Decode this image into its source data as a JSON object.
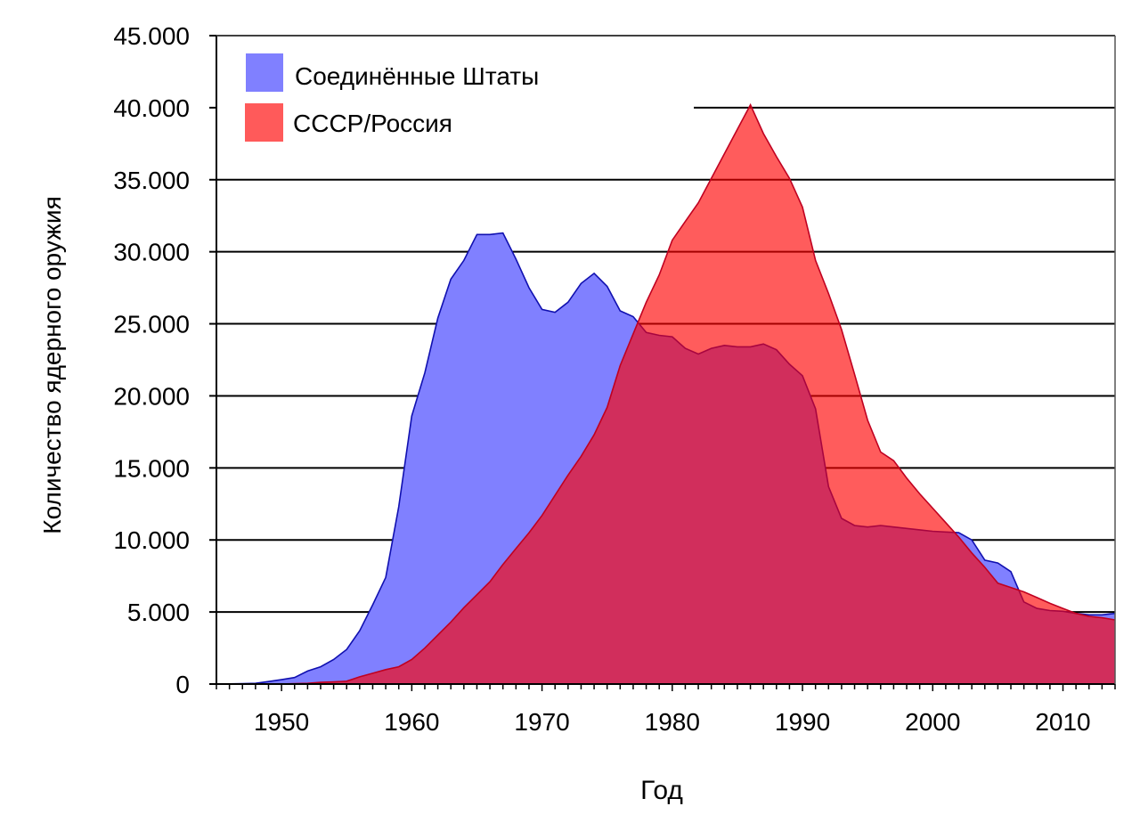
{
  "chart_data": {
    "type": "area",
    "title": "",
    "xlabel": "Год",
    "ylabel": "Количество ядерного оружия",
    "xlim": [
      1945,
      2014
    ],
    "ylim": [
      0,
      45000
    ],
    "grid": true,
    "legend_position": "top-left",
    "x_ticks": [
      "1950",
      "1960",
      "1970",
      "1980",
      "1990",
      "2000",
      "2010"
    ],
    "y_ticks": [
      "0",
      "5.000",
      "10.000",
      "15.000",
      "20.000",
      "25.000",
      "30.000",
      "35.000",
      "40.000",
      "45.000"
    ],
    "series": [
      {
        "name": "Соединённые Штаты",
        "color": "#8080ff",
        "line_color": "#1010b0",
        "x": [
          1945,
          1946,
          1947,
          1948,
          1949,
          1950,
          1951,
          1952,
          1953,
          1954,
          1955,
          1956,
          1957,
          1958,
          1959,
          1960,
          1961,
          1962,
          1963,
          1964,
          1965,
          1966,
          1967,
          1968,
          1969,
          1970,
          1971,
          1972,
          1973,
          1974,
          1975,
          1976,
          1977,
          1978,
          1979,
          1980,
          1981,
          1982,
          1983,
          1984,
          1985,
          1986,
          1987,
          1988,
          1989,
          1990,
          1991,
          1992,
          1993,
          1994,
          1995,
          1996,
          1997,
          1998,
          1999,
          2000,
          2001,
          2002,
          2003,
          2004,
          2005,
          2006,
          2007,
          2008,
          2009,
          2010,
          2011,
          2012,
          2013,
          2014
        ],
        "values": [
          0,
          10,
          30,
          50,
          170,
          300,
          450,
          900,
          1200,
          1700,
          2400,
          3700,
          5500,
          7400,
          12300,
          18600,
          21600,
          25400,
          28100,
          29400,
          31200,
          31200,
          31300,
          29500,
          27500,
          26000,
          25800,
          26500,
          27800,
          28500,
          27600,
          25900,
          25500,
          24400,
          24200,
          24100,
          23300,
          22900,
          23300,
          23500,
          23400,
          23400,
          23600,
          23200,
          22200,
          21400,
          19100,
          13700,
          11500,
          11000,
          10900,
          11000,
          10900,
          10800,
          10700,
          10600,
          10550,
          10500,
          10000,
          8600,
          8400,
          7800,
          5700,
          5250,
          5100,
          5050,
          4900,
          4800,
          4800,
          4900
        ]
      },
      {
        "name": "СССР/Россия",
        "color": "#ff5a5a",
        "line_color": "#c00020",
        "x": [
          1949,
          1950,
          1951,
          1952,
          1953,
          1954,
          1955,
          1956,
          1957,
          1958,
          1959,
          1960,
          1961,
          1962,
          1963,
          1964,
          1965,
          1966,
          1967,
          1968,
          1969,
          1970,
          1971,
          1972,
          1973,
          1974,
          1975,
          1976,
          1977,
          1978,
          1979,
          1980,
          1981,
          1982,
          1983,
          1984,
          1985,
          1986,
          1987,
          1988,
          1989,
          1990,
          1991,
          1992,
          1993,
          1994,
          1995,
          1996,
          1997,
          1998,
          1999,
          2000,
          2001,
          2002,
          2003,
          2004,
          2005,
          2006,
          2007,
          2008,
          2009,
          2010,
          2011,
          2012,
          2013,
          2014
        ],
        "values": [
          0,
          5,
          25,
          50,
          120,
          150,
          200,
          500,
          750,
          1000,
          1200,
          1700,
          2500,
          3400,
          4300,
          5300,
          6200,
          7100,
          8300,
          9400,
          10500,
          11700,
          13100,
          14500,
          15800,
          17300,
          19200,
          22100,
          24300,
          26500,
          28400,
          30800,
          32100,
          33400,
          35100,
          36800,
          38500,
          40200,
          38200,
          36600,
          35100,
          33100,
          29400,
          27100,
          24600,
          21500,
          18300,
          16100,
          15500,
          14300,
          13200,
          12200,
          11200,
          10200,
          9100,
          8100,
          7000,
          6700,
          6400,
          6000,
          5600,
          5250,
          4900,
          4700,
          4600,
          4450
        ]
      }
    ]
  }
}
